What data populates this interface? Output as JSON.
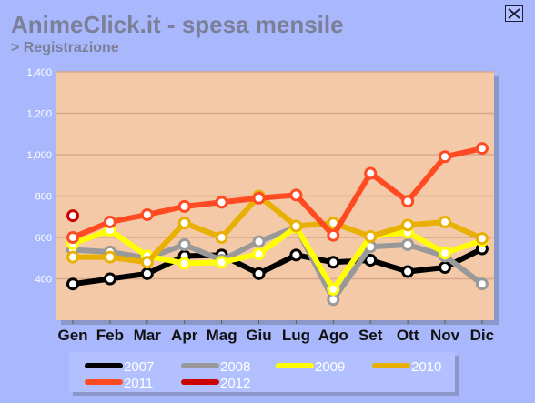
{
  "header": {
    "title": "AnimeClick.it - spesa mensile",
    "subtitle": "> Registrazione"
  },
  "colors": {
    "background": "#a9b8fd",
    "plot_area": "#f4c9a8",
    "legend_bg": "#b3c0ff",
    "grid": "#d8a88a"
  },
  "chart_data": {
    "type": "line",
    "title": "AnimeClick.it - spesa mensile",
    "subtitle": "> Registrazione",
    "categories": [
      "Gen",
      "Feb",
      "Mar",
      "Apr",
      "Mag",
      "Giu",
      "Lug",
      "Ago",
      "Set",
      "Ott",
      "Nov",
      "Dic"
    ],
    "yticks": [
      "1,400",
      "1,200",
      "1,000",
      "800",
      "600",
      "400"
    ],
    "ytick_values": [
      1400,
      1200,
      1000,
      800,
      600,
      400
    ],
    "ylim": [
      200,
      1400
    ],
    "grid": true,
    "legend_position": "bottom",
    "series": [
      {
        "name": "2007",
        "color": "#000000",
        "values": [
          375,
          400,
          425,
          510,
          515,
          425,
          515,
          480,
          490,
          435,
          455,
          545
        ]
      },
      {
        "name": "2008",
        "color": "#999999",
        "values": [
          540,
          530,
          500,
          565,
          490,
          580,
          650,
          300,
          555,
          565,
          510,
          375
        ]
      },
      {
        "name": "2009",
        "color": "#ffff00",
        "values": [
          570,
          635,
          510,
          475,
          480,
          520,
          650,
          350,
          605,
          625,
          525,
          585
        ]
      },
      {
        "name": "2010",
        "color": "#e8b000",
        "values": [
          505,
          505,
          480,
          670,
          600,
          800,
          655,
          670,
          605,
          660,
          675,
          595
        ]
      },
      {
        "name": "2011",
        "color": "#ff4a22",
        "values": [
          600,
          675,
          710,
          750,
          770,
          790,
          805,
          610,
          910,
          775,
          990,
          1030
        ]
      },
      {
        "name": "2012",
        "color": "#cc0000",
        "values": [
          705,
          null,
          null,
          null,
          null,
          null,
          null,
          null,
          null,
          null,
          null,
          null
        ]
      }
    ]
  }
}
